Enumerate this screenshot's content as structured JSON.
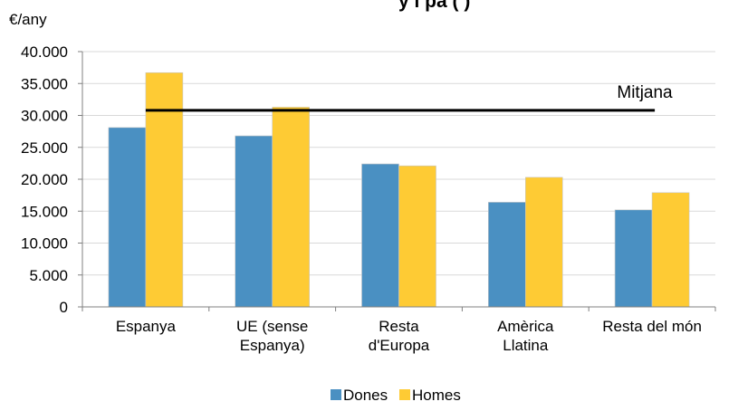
{
  "chart_data": {
    "type": "bar",
    "title": "y i pa                    (    )",
    "ylabel": "€/any",
    "xlabel": "",
    "ylim": [
      0,
      40000
    ],
    "ytick_values": [
      0,
      5000,
      10000,
      15000,
      20000,
      25000,
      30000,
      35000,
      40000
    ],
    "ytick_labels": [
      "0",
      "5.000",
      "10.000",
      "15.000",
      "20.000",
      "25.000",
      "30.000",
      "35.000",
      "40.000"
    ],
    "categories": [
      [
        "Espanya"
      ],
      [
        "UE (sense",
        "Espanya)"
      ],
      [
        "Resta",
        "d'Europa"
      ],
      [
        "Amèrica",
        "Llatina"
      ],
      [
        "Resta del món"
      ]
    ],
    "series": [
      {
        "name": "Dones",
        "color": "#4a90c2",
        "values": [
          28100,
          26800,
          22400,
          16400,
          15200
        ]
      },
      {
        "name": "Homes",
        "color": "#fecb34",
        "values": [
          36700,
          31300,
          22100,
          20300,
          17900
        ]
      }
    ],
    "reference_line": {
      "label": "Mitjana",
      "value": 30800,
      "from_category": 0,
      "to_category": 4
    },
    "grid": true,
    "legend_position": "bottom"
  }
}
